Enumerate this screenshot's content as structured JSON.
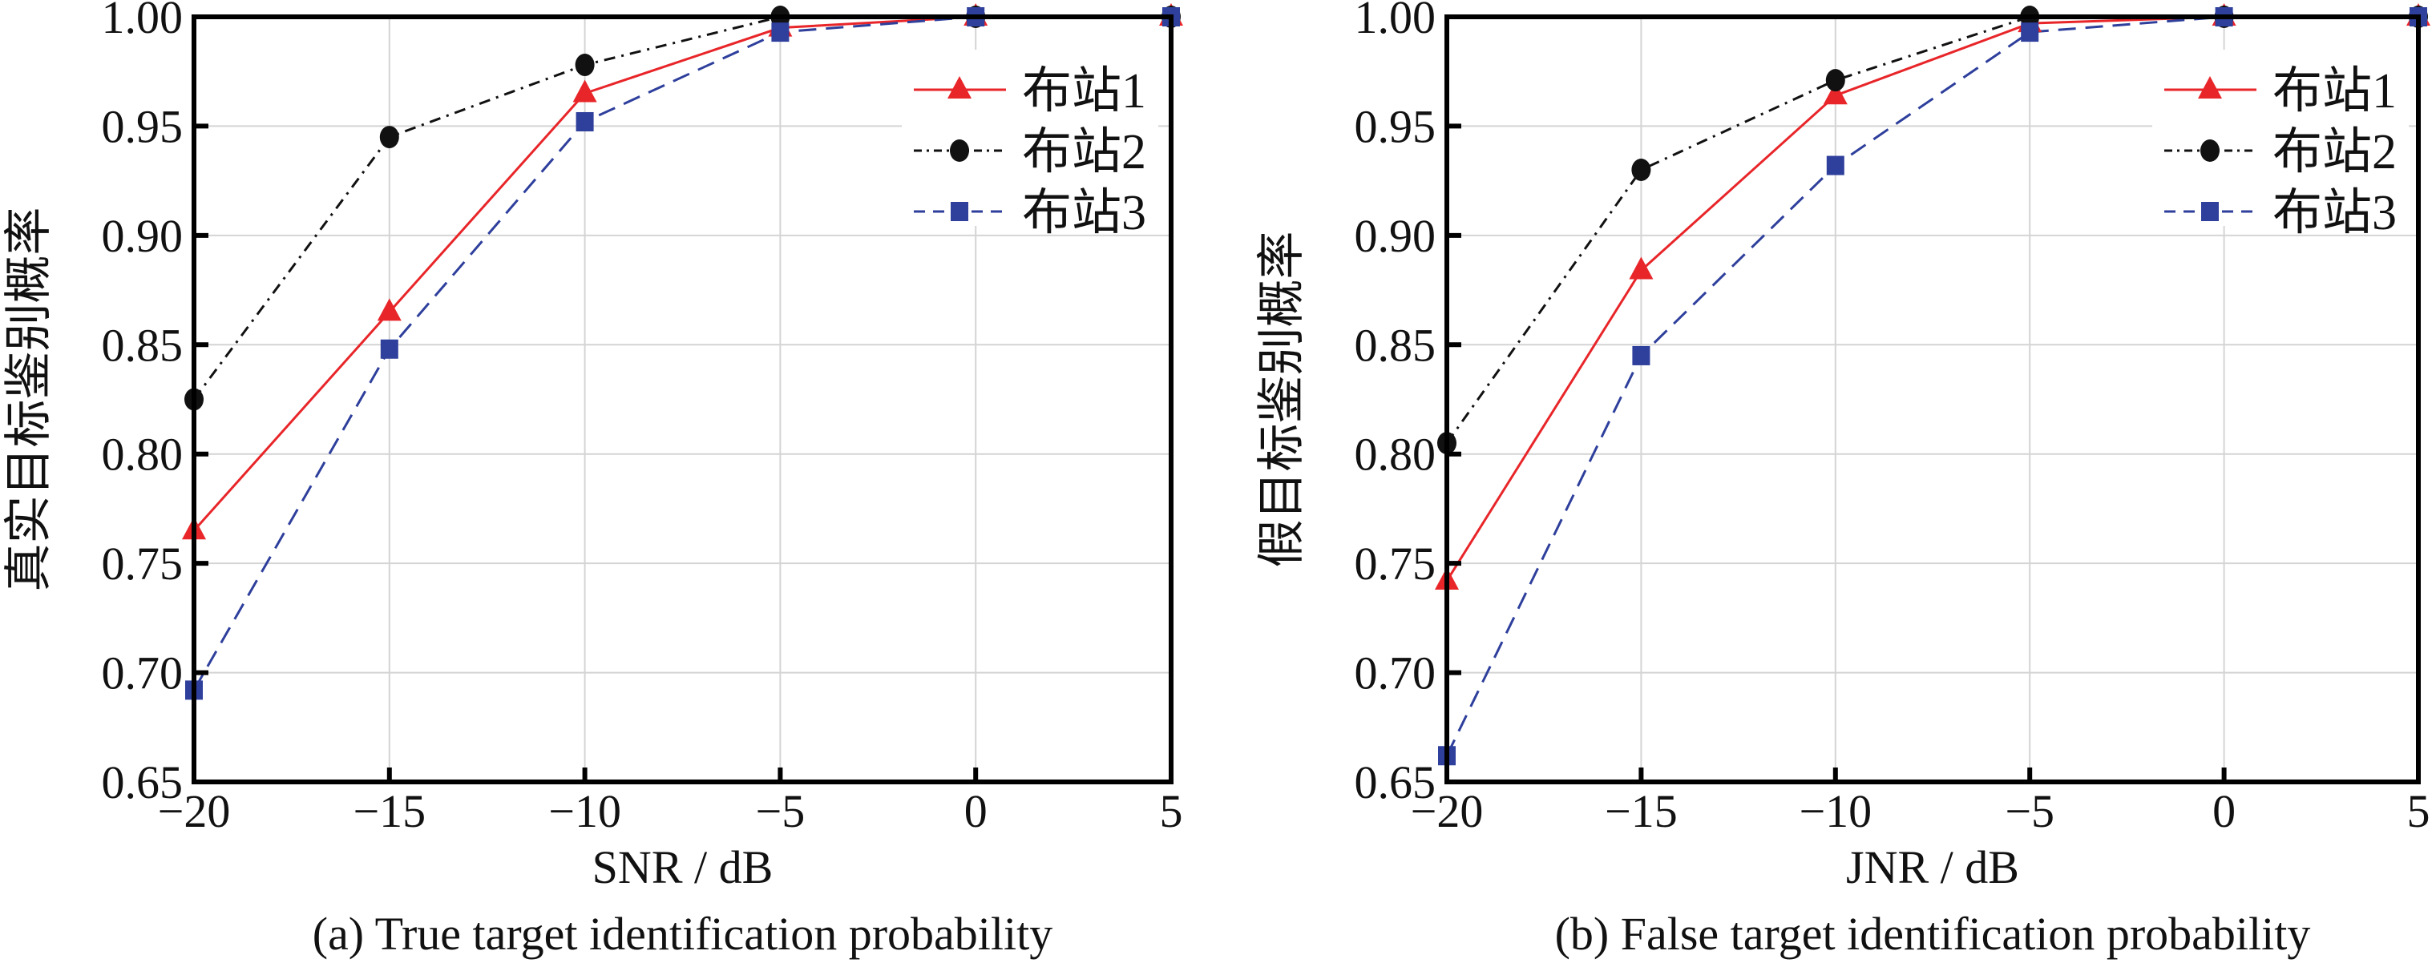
{
  "chart_data": [
    {
      "type": "line",
      "caption": "(a) True target identification probability",
      "xlabel": "SNR / dB",
      "ylabel": "真实目标鉴别概率",
      "x": [
        -20,
        -15,
        -10,
        -5,
        0,
        5
      ],
      "xlim": [
        -20,
        5
      ],
      "ylim": [
        0.65,
        1.0
      ],
      "xticks": [
        -20,
        -15,
        -10,
        -5,
        0,
        5
      ],
      "xtick_labels": [
        "−20",
        "−15",
        "−10",
        "−5",
        "0",
        "5"
      ],
      "yticks": [
        0.65,
        0.7,
        0.75,
        0.8,
        0.85,
        0.9,
        0.95,
        1.0
      ],
      "ytick_labels": [
        "0.65",
        "0.70",
        "0.75",
        "0.80",
        "0.85",
        "0.90",
        "0.95",
        "1.00"
      ],
      "grid": true,
      "legend_position": "top-right",
      "series": [
        {
          "name": "布站1",
          "color": "#e8262a",
          "marker": "triangle",
          "dash": "solid",
          "values": [
            0.765,
            0.865,
            0.965,
            0.995,
            1.0,
            1.0
          ]
        },
        {
          "name": "布站2",
          "color": "#111111",
          "marker": "circle",
          "dash": "dashdot",
          "values": [
            0.825,
            0.945,
            0.978,
            1.0,
            1.0,
            1.0
          ]
        },
        {
          "name": "布站3",
          "color": "#2e3f9c",
          "marker": "square",
          "dash": "dashed",
          "values": [
            0.692,
            0.848,
            0.952,
            0.993,
            1.0,
            1.0
          ]
        }
      ]
    },
    {
      "type": "line",
      "caption": "(b) False target identification probability",
      "xlabel": "JNR / dB",
      "ylabel": "假目标鉴别概率",
      "x": [
        -20,
        -15,
        -10,
        -5,
        0,
        5
      ],
      "xlim": [
        -20,
        5
      ],
      "ylim": [
        0.65,
        1.0
      ],
      "xticks": [
        -20,
        -15,
        -10,
        -5,
        0,
        5
      ],
      "xtick_labels": [
        "−20",
        "−15",
        "−10",
        "−5",
        "0",
        "5"
      ],
      "yticks": [
        0.65,
        0.7,
        0.75,
        0.8,
        0.85,
        0.9,
        0.95,
        1.0
      ],
      "ytick_labels": [
        "0.65",
        "0.70",
        "0.75",
        "0.80",
        "0.85",
        "0.90",
        "0.95",
        "1.00"
      ],
      "grid": true,
      "legend_position": "top-right",
      "series": [
        {
          "name": "布站1",
          "color": "#e8262a",
          "marker": "triangle",
          "dash": "solid",
          "values": [
            0.742,
            0.884,
            0.964,
            0.997,
            1.0,
            1.0
          ]
        },
        {
          "name": "布站2",
          "color": "#111111",
          "marker": "circle",
          "dash": "dashdot",
          "values": [
            0.805,
            0.93,
            0.971,
            1.0,
            1.0,
            1.0
          ]
        },
        {
          "name": "布站3",
          "color": "#2e3f9c",
          "marker": "square",
          "dash": "dashed",
          "values": [
            0.662,
            0.845,
            0.932,
            0.993,
            1.0,
            1.0
          ]
        }
      ]
    }
  ]
}
